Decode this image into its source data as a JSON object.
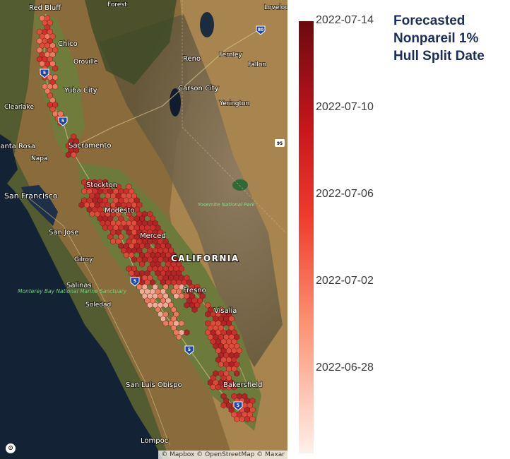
{
  "legend": {
    "title_lines": [
      "Forecasted",
      "Nonpareil 1%",
      "Hull Split Date"
    ],
    "ticks": [
      "2022-07-14",
      "2022-07-10",
      "2022-07-06",
      "2022-07-02",
      "2022-06-28"
    ],
    "colors": {
      "max": "#6b0a0f",
      "mid_high": "#c8161c",
      "mid": "#ef3b2c",
      "low": "#fc9272",
      "min": "#fff0eb"
    }
  },
  "map": {
    "region_label": "CALIFORNIA",
    "cities": [
      "Red Bluff",
      "Forest",
      "Lovelock",
      "Chico",
      "Oroville",
      "Reno",
      "Fernley",
      "Fallon",
      "Yuba City",
      "Carson City",
      "Clearlake",
      "Yerington",
      "Santa Rosa",
      "Sacramento",
      "Napa",
      "Stockton",
      "San Francisco",
      "Modesto",
      "Yosemite National Park",
      "San Jose",
      "Merced",
      "Gilroy",
      "Monterey Bay National Marine Sanctuary",
      "Salinas",
      "Fresno",
      "Soledad",
      "Visalia",
      "Bakersfield",
      "San Luis Obispo",
      "Lompoc"
    ],
    "shields": [
      "80",
      "5",
      "5",
      "95",
      "5",
      "5",
      "5"
    ],
    "attribution": "© Mapbox © OpenStreetMap © Maxar",
    "logo_glyph": "⊙"
  }
}
